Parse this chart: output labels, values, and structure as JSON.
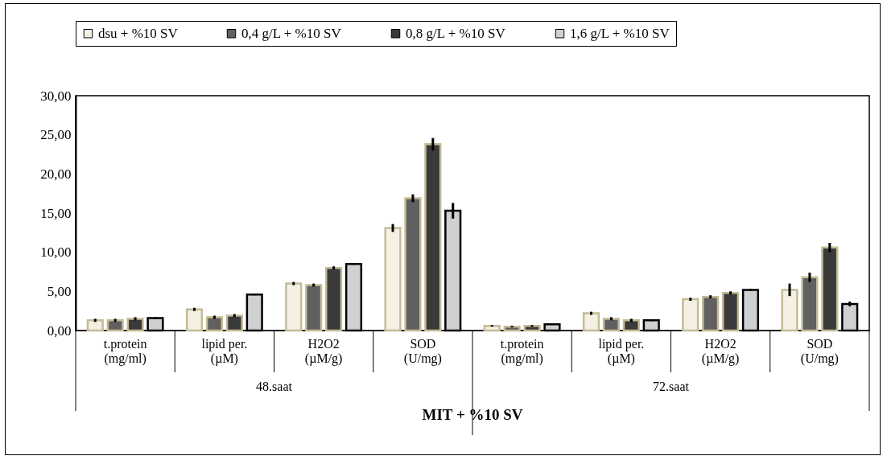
{
  "chart_data": {
    "type": "bar",
    "xlabel": "MIT + %10 SV",
    "categories": [
      "t.protein (mg/ml)",
      "lipid per. (µM)",
      "H2O2 (µM/g)",
      "SOD (U/mg)",
      "t.protein (mg/ml)",
      "lipid per. (µM)",
      "H2O2 (µM/g)",
      "SOD (U/mg)"
    ],
    "series": [
      {
        "name": "dsu + %10 SV",
        "color": "#f4f1e4",
        "values": [
          1.3,
          2.7,
          6.0,
          13.1,
          0.6,
          2.2,
          4.0,
          5.2
        ],
        "errors": [
          0.2,
          0.2,
          0.2,
          0.5,
          0.1,
          0.2,
          0.2,
          0.8
        ]
      },
      {
        "name": "0,4 g/L + %10 SV",
        "color": "#606060",
        "values": [
          1.3,
          1.7,
          5.8,
          16.9,
          0.5,
          1.5,
          4.3,
          6.8
        ],
        "errors": [
          0.2,
          0.2,
          0.2,
          0.5,
          0.1,
          0.2,
          0.2,
          0.6
        ]
      },
      {
        "name": "0,8 g/L + %10 SV",
        "color": "#3a3a3a",
        "values": [
          1.5,
          1.9,
          8.0,
          23.8,
          0.6,
          1.3,
          4.8,
          10.6
        ],
        "errors": [
          0.2,
          0.2,
          0.2,
          0.8,
          0.1,
          0.2,
          0.2,
          0.6
        ]
      },
      {
        "name": "1,6 g/L + %10 SV",
        "color": "#d0d0d0",
        "values": [
          1.6,
          4.6,
          8.5,
          15.3,
          0.8,
          1.3,
          5.2,
          3.4
        ],
        "errors": [
          0.1,
          0.1,
          0.1,
          1.0,
          0.1,
          0.1,
          0.1,
          0.3
        ]
      }
    ],
    "ylim": [
      0,
      30
    ],
    "yticks": [
      {
        "value": 0,
        "label": "0,00"
      },
      {
        "value": 5,
        "label": "5,00"
      },
      {
        "value": 10,
        "label": "10,00"
      },
      {
        "value": 15,
        "label": "15,00"
      },
      {
        "value": 20,
        "label": "20,00"
      },
      {
        "value": 25,
        "label": "25,00"
      },
      {
        "value": 30,
        "label": "30,00"
      }
    ],
    "annotations": [
      "48.saat",
      "72.saat"
    ],
    "legend": "top",
    "grid": false
  }
}
